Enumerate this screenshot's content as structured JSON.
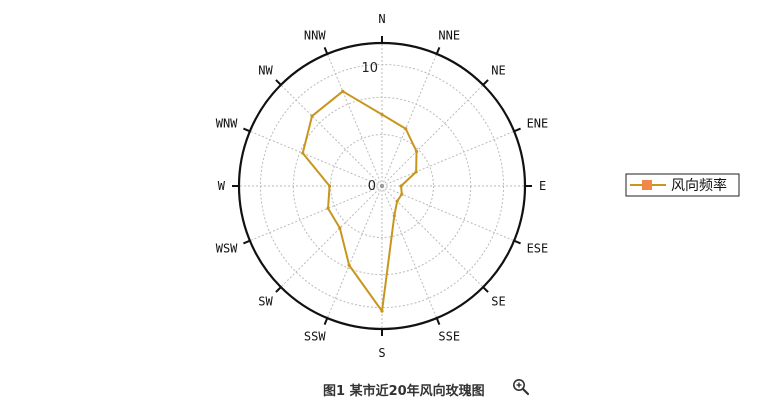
{
  "chart_data": {
    "type": "radar",
    "directions": [
      "N",
      "NNE",
      "NE",
      "ENE",
      "E",
      "ESE",
      "SE",
      "SSE",
      "S",
      "SSW",
      "SW",
      "WSW",
      "W",
      "WNW",
      "NW",
      "NNW"
    ],
    "radial_ticks": [
      "0",
      "10"
    ],
    "rlim": [
      0,
      12
    ],
    "series": [
      {
        "name": "风向频率",
        "color": "#c8961e",
        "values": [
          6.0,
          5.2,
          4.1,
          3.1,
          1.6,
          1.8,
          1.8,
          2.7,
          10.5,
          7.2,
          5.0,
          4.9,
          4.4,
          7.2,
          8.3,
          8.6
        ]
      }
    ],
    "legend_position": "right",
    "grid": true
  },
  "caption": "图1 某市近20年风向玫瑰图",
  "icons": {
    "zoom": "zoom-in-icon"
  }
}
